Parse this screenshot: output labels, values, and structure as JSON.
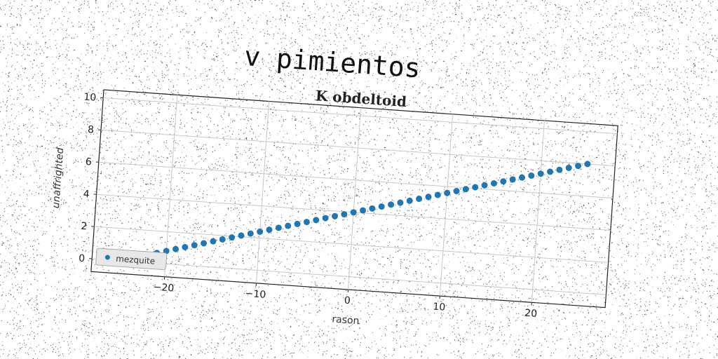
{
  "page": {
    "suptitle": "v pimientos"
  },
  "chart_data": {
    "type": "scatter",
    "title": "K obdeltoid",
    "xlabel": "rason",
    "ylabel": "unaffrighted",
    "xlim": [
      -28,
      28
    ],
    "ylim": [
      -0.8,
      10.5
    ],
    "xticks": [
      -20,
      -10,
      0,
      10,
      20
    ],
    "yticks": [
      0,
      2,
      4,
      6,
      8,
      10
    ],
    "grid": true,
    "legend_position": "lower-left",
    "series": [
      {
        "name": "mezquite",
        "color": "#1f77b4",
        "x": [
          -25,
          -24,
          -23,
          -22,
          -21,
          -20,
          -19,
          -18,
          -17,
          -16,
          -15,
          -14,
          -13,
          -12,
          -11,
          -10,
          -9,
          -8,
          -7,
          -6,
          -5,
          -4,
          -3,
          -2,
          -1,
          0,
          1,
          2,
          3,
          4,
          5,
          6,
          7,
          8,
          9,
          10,
          11,
          12,
          13,
          14,
          15,
          16,
          17,
          18,
          19,
          20,
          21,
          22,
          23,
          24,
          25
        ],
        "y": [
          0.0,
          0.16,
          0.32,
          0.48,
          0.64,
          0.8,
          0.96,
          1.12,
          1.28,
          1.44,
          1.6,
          1.76,
          1.92,
          2.08,
          2.24,
          2.4,
          2.56,
          2.72,
          2.88,
          3.04,
          3.2,
          3.36,
          3.52,
          3.68,
          3.84,
          4.0,
          4.16,
          4.32,
          4.48,
          4.64,
          4.8,
          4.96,
          5.12,
          5.28,
          5.44,
          5.6,
          5.76,
          5.92,
          6.08,
          6.24,
          6.4,
          6.56,
          6.72,
          6.88,
          7.04,
          7.2,
          7.36,
          7.52,
          7.68,
          7.84,
          8.0
        ]
      }
    ]
  }
}
